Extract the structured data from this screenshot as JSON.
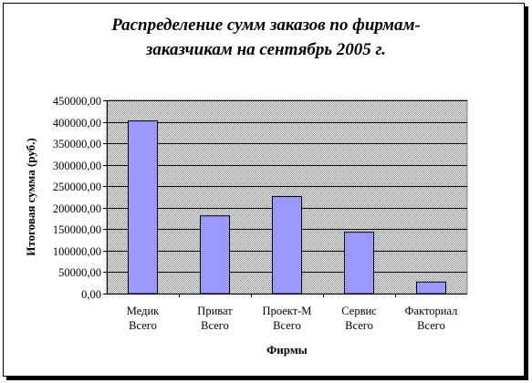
{
  "chart_data": {
    "type": "bar",
    "title_line1": "Распределение сумм заказов по фирмам-",
    "title_line2": "заказчикам на сентябрь 2005 г.",
    "xlabel": "Фирмы",
    "ylabel": "Итоговая сумма (руб.)",
    "categories": [
      [
        "Медик",
        "Всего"
      ],
      [
        "Приват",
        "Всего"
      ],
      [
        "Проект-М",
        "Всего"
      ],
      [
        "Сервис",
        "Всего"
      ],
      [
        "Факториал",
        "Всего"
      ]
    ],
    "values": [
      402000,
      181000,
      226000,
      143000,
      27000
    ],
    "ylim": [
      0,
      450000
    ],
    "ytick_step": 50000,
    "ytick_labels": [
      "0,00",
      "50000,00",
      "100000,00",
      "150000,00",
      "200000,00",
      "250000,00",
      "300000,00",
      "350000,00",
      "400000,00",
      "450000,00"
    ],
    "grid": true,
    "legend": "none",
    "bar_fill": "#9999ff",
    "plot_background": "#c0c0c0"
  }
}
